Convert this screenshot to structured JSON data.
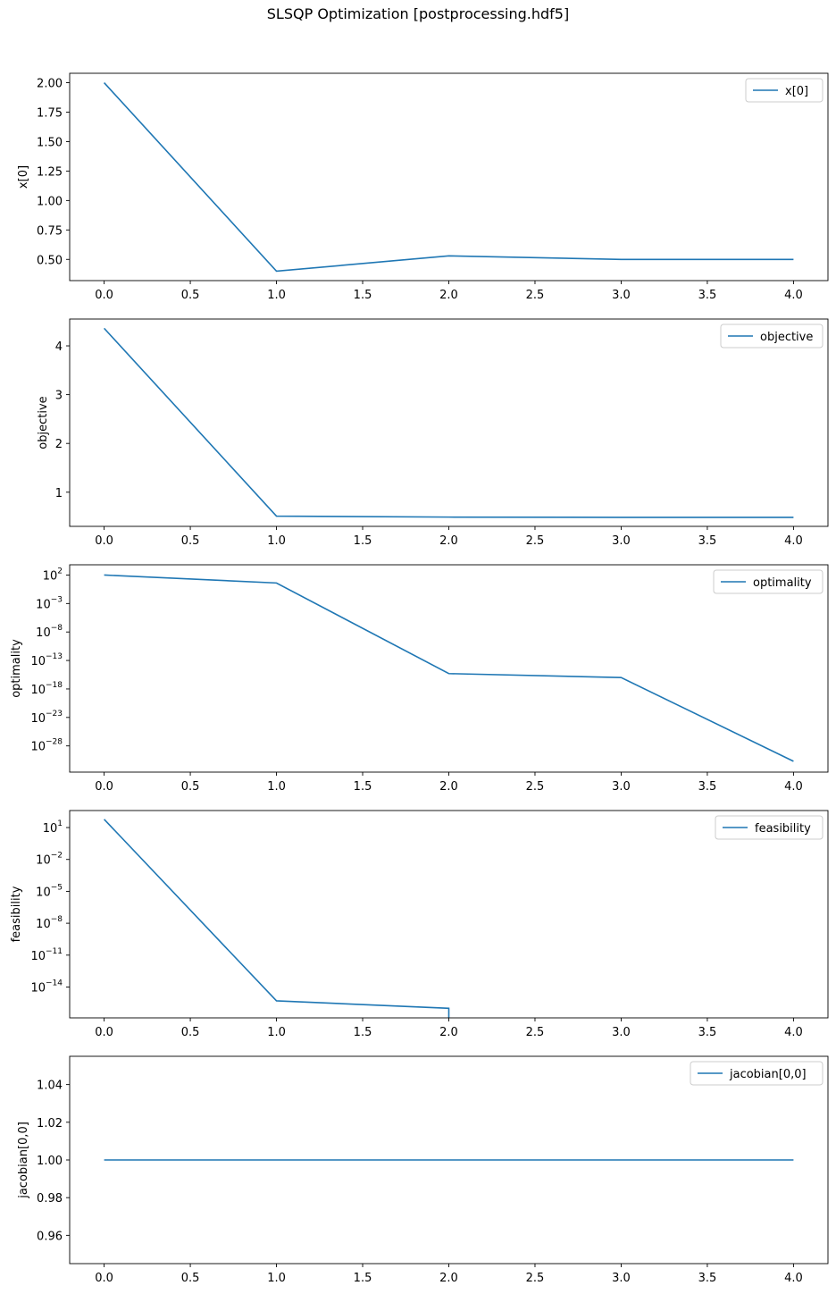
{
  "figure": {
    "title": "SLSQP Optimization [postprocessing.hdf5]"
  },
  "chart_data": [
    {
      "type": "line",
      "ylabel": "x[0]",
      "scale": "linear",
      "x": [
        0,
        1,
        2,
        3,
        4
      ],
      "series": [
        {
          "name": "x[0]",
          "values": [
            2.0,
            0.4,
            0.53,
            0.5,
            0.5
          ],
          "color": "#1f77b4"
        }
      ],
      "xlim": [
        -0.2,
        4.2
      ],
      "ylim": [
        0.32,
        2.08
      ],
      "xticks": [
        0,
        0.5,
        1,
        1.5,
        2,
        2.5,
        3,
        3.5,
        4
      ],
      "xtick_labels": [
        "0.0",
        "0.5",
        "1.0",
        "1.5",
        "2.0",
        "2.5",
        "3.0",
        "3.5",
        "4.0"
      ],
      "yticks": [
        0.5,
        0.75,
        1.0,
        1.25,
        1.5,
        1.75,
        2.0
      ],
      "ytick_labels": [
        "0.50",
        "0.75",
        "1.00",
        "1.25",
        "1.50",
        "1.75",
        "2.00"
      ],
      "legend": "top-right"
    },
    {
      "type": "line",
      "ylabel": "objective",
      "scale": "linear",
      "x": [
        0,
        1,
        2,
        3,
        4
      ],
      "series": [
        {
          "name": "objective",
          "values": [
            4.36,
            0.51,
            0.49,
            0.485,
            0.485
          ],
          "color": "#1f77b4"
        }
      ],
      "xlim": [
        -0.2,
        4.2
      ],
      "ylim": [
        0.3,
        4.55
      ],
      "xticks": [
        0,
        0.5,
        1,
        1.5,
        2,
        2.5,
        3,
        3.5,
        4
      ],
      "xtick_labels": [
        "0.0",
        "0.5",
        "1.0",
        "1.5",
        "2.0",
        "2.5",
        "3.0",
        "3.5",
        "4.0"
      ],
      "yticks": [
        1,
        2,
        3,
        4
      ],
      "ytick_labels": [
        "1",
        "2",
        "3",
        "4"
      ],
      "legend": "top-right"
    },
    {
      "type": "line",
      "ylabel": "optimality",
      "scale": "log",
      "x": [
        0,
        1,
        2,
        3,
        4
      ],
      "series": [
        {
          "name": "optimality",
          "values": [
            100.0,
            4.0,
            5e-16,
            1e-16,
            2e-31
          ],
          "color": "#1f77b4"
        }
      ],
      "xlim": [
        -0.2,
        4.2
      ],
      "ylim_exp": [
        -32.6,
        3.8
      ],
      "xticks": [
        0,
        0.5,
        1,
        1.5,
        2,
        2.5,
        3,
        3.5,
        4
      ],
      "xtick_labels": [
        "0.0",
        "0.5",
        "1.0",
        "1.5",
        "2.0",
        "2.5",
        "3.0",
        "3.5",
        "4.0"
      ],
      "ytick_exponents": [
        2,
        -3,
        -8,
        -13,
        -18,
        -23,
        -28
      ],
      "ytick_labels": [
        "2",
        "−3",
        "−8",
        "−13",
        "−18",
        "−23",
        "−28"
      ],
      "legend": "top-right"
    },
    {
      "type": "line",
      "ylabel": "feasibility",
      "scale": "log",
      "x": [
        0,
        1,
        2,
        2
      ],
      "series": [
        {
          "name": "feasibility",
          "values": [
            60,
            5e-16,
            1e-16,
            1e-17
          ],
          "color": "#1f77b4"
        }
      ],
      "xlim": [
        -0.2,
        4.2
      ],
      "ylim_exp": [
        -16.9,
        2.6
      ],
      "xticks": [
        0,
        0.5,
        1,
        1.5,
        2,
        2.5,
        3,
        3.5,
        4
      ],
      "xtick_labels": [
        "0.0",
        "0.5",
        "1.0",
        "1.5",
        "2.0",
        "2.5",
        "3.0",
        "3.5",
        "4.0"
      ],
      "ytick_exponents": [
        1,
        -2,
        -5,
        -8,
        -11,
        -14
      ],
      "ytick_labels": [
        "1",
        "−2",
        "−5",
        "−8",
        "−11",
        "−14"
      ],
      "legend": "top-right"
    },
    {
      "type": "line",
      "ylabel": "jacobian[0,0]",
      "scale": "linear",
      "x": [
        0,
        1,
        2,
        3,
        4
      ],
      "series": [
        {
          "name": "jacobian[0,0]",
          "values": [
            1.0,
            1.0,
            1.0,
            1.0,
            1.0
          ],
          "color": "#1f77b4"
        }
      ],
      "xlim": [
        -0.2,
        4.2
      ],
      "ylim": [
        0.945,
        1.055
      ],
      "xticks": [
        0,
        0.5,
        1,
        1.5,
        2,
        2.5,
        3,
        3.5,
        4
      ],
      "xtick_labels": [
        "0.0",
        "0.5",
        "1.0",
        "1.5",
        "2.0",
        "2.5",
        "3.0",
        "3.5",
        "4.0"
      ],
      "yticks": [
        0.96,
        0.98,
        1.0,
        1.02,
        1.04
      ],
      "ytick_labels": [
        "0.96",
        "0.98",
        "1.00",
        "1.02",
        "1.04"
      ],
      "legend": "top-right"
    }
  ]
}
